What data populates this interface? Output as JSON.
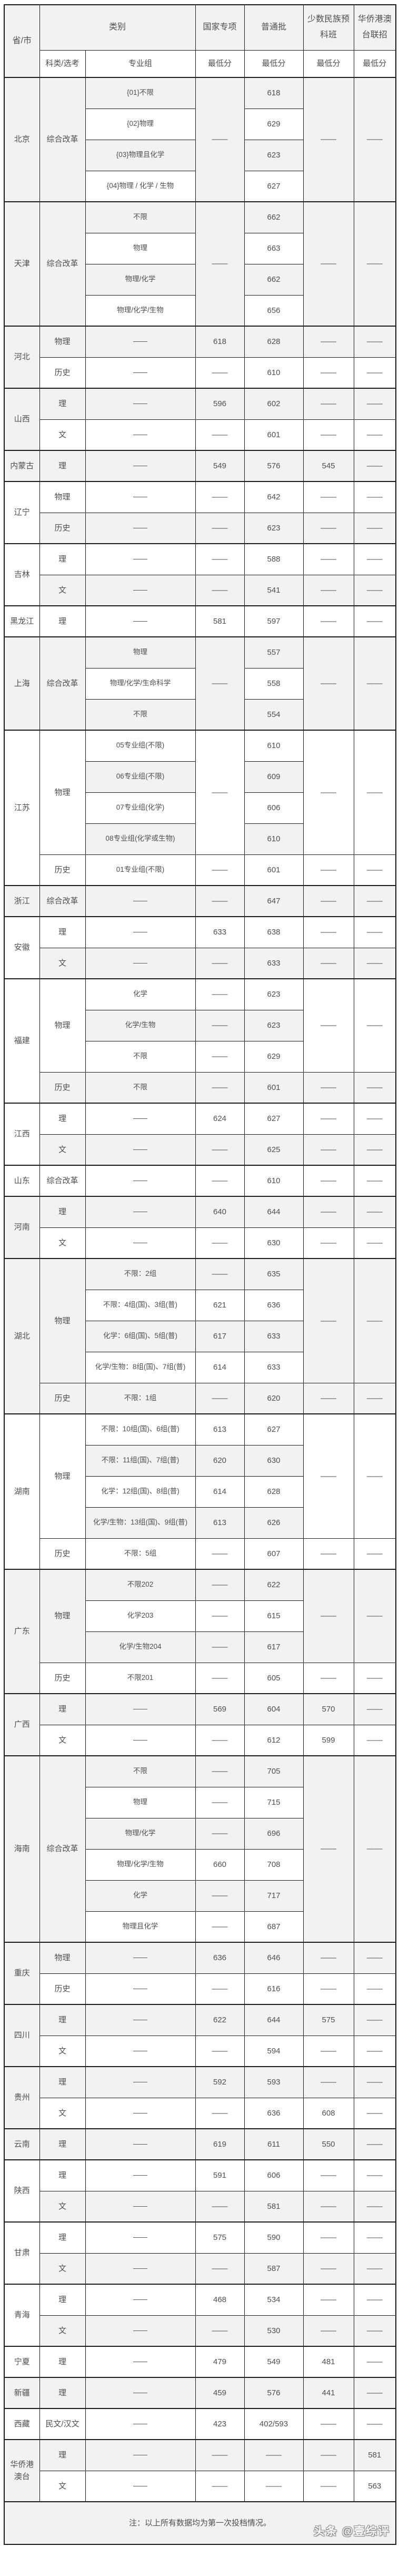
{
  "table": {
    "header": {
      "province": "省/市",
      "category": "类别",
      "subject_type": "科类/选考",
      "major_group": "专业组",
      "national": "国家专项",
      "regular": "普通批",
      "minority": "少数民族预科班",
      "overseas": "华侨港澳台联招",
      "min_score": "最低分"
    },
    "provinces": [
      {
        "name": "北京",
        "groups": [
          {
            "subject": "综合改革",
            "merge": {
              "national": "——",
              "minority": "——",
              "overseas": "——"
            },
            "rows": [
              [
                "{01}不限",
                null,
                "618",
                null,
                null
              ],
              [
                "{02}物理",
                null,
                "629",
                null,
                null
              ],
              [
                "{03}物理且化学",
                null,
                "623",
                null,
                null
              ],
              [
                "{04}物理 / 化学 / 生物",
                null,
                "627",
                null,
                null
              ]
            ]
          }
        ]
      },
      {
        "name": "天津",
        "groups": [
          {
            "subject": "综合改革",
            "merge": {
              "national": "——",
              "minority": "——",
              "overseas": "——"
            },
            "rows": [
              [
                "不限",
                null,
                "662",
                null,
                null
              ],
              [
                "物理",
                null,
                "663",
                null,
                null
              ],
              [
                "物理/化学",
                null,
                "662",
                null,
                null
              ],
              [
                "物理/化学/生物",
                null,
                "656",
                null,
                null
              ]
            ]
          }
        ]
      },
      {
        "name": "河北",
        "groups": [
          {
            "subject": "物理",
            "rows": [
              [
                "——",
                "618",
                "628",
                "——",
                "——"
              ]
            ]
          },
          {
            "subject": "历史",
            "rows": [
              [
                "——",
                "——",
                "610",
                "——",
                "——"
              ]
            ]
          }
        ]
      },
      {
        "name": "山西",
        "groups": [
          {
            "subject": "理",
            "rows": [
              [
                "——",
                "596",
                "602",
                "——",
                "——"
              ]
            ]
          },
          {
            "subject": "文",
            "rows": [
              [
                "——",
                "——",
                "601",
                "——",
                "——"
              ]
            ]
          }
        ]
      },
      {
        "name": "内蒙古",
        "groups": [
          {
            "subject": "理",
            "rows": [
              [
                "——",
                "549",
                "576",
                "545",
                "——"
              ]
            ]
          }
        ]
      },
      {
        "name": "辽宁",
        "groups": [
          {
            "subject": "物理",
            "rows": [
              [
                "——",
                "——",
                "642",
                "——",
                "——"
              ]
            ]
          },
          {
            "subject": "历史",
            "rows": [
              [
                "——",
                "——",
                "623",
                "——",
                "——"
              ]
            ]
          }
        ]
      },
      {
        "name": "吉林",
        "groups": [
          {
            "subject": "理",
            "rows": [
              [
                "——",
                "——",
                "588",
                "——",
                "——"
              ]
            ]
          },
          {
            "subject": "文",
            "rows": [
              [
                "——",
                "——",
                "541",
                "——",
                "——"
              ]
            ]
          }
        ]
      },
      {
        "name": "黑龙江",
        "groups": [
          {
            "subject": "理",
            "rows": [
              [
                "——",
                "581",
                "597",
                "——",
                "——"
              ]
            ]
          }
        ]
      },
      {
        "name": "上海",
        "groups": [
          {
            "subject": "综合改革",
            "merge": {
              "national": "——",
              "minority": "——",
              "overseas": "——"
            },
            "rows": [
              [
                "物理",
                null,
                "557",
                null,
                null
              ],
              [
                "物理/化学/生命科学",
                null,
                "558",
                null,
                null
              ],
              [
                "不限",
                null,
                "554",
                null,
                null
              ]
            ]
          }
        ]
      },
      {
        "name": "江苏",
        "groups": [
          {
            "subject": "物理",
            "merge": {
              "national": "——",
              "minority": "——",
              "overseas": "——"
            },
            "rows": [
              [
                "05专业组(不限)",
                null,
                "610",
                null,
                null
              ],
              [
                "06专业组(不限)",
                null,
                "609",
                null,
                null
              ],
              [
                "07专业组(化学)",
                null,
                "606",
                null,
                null
              ],
              [
                "08专业组(化学或生物)",
                null,
                "610",
                null,
                null
              ]
            ]
          },
          {
            "subject": "历史",
            "rows": [
              [
                "01专业组(不限)",
                "——",
                "601",
                "——",
                "——"
              ]
            ]
          }
        ]
      },
      {
        "name": "浙江",
        "groups": [
          {
            "subject": "综合改革",
            "rows": [
              [
                "——",
                "——",
                "647",
                "——",
                "——"
              ]
            ]
          }
        ]
      },
      {
        "name": "安徽",
        "groups": [
          {
            "subject": "理",
            "rows": [
              [
                "——",
                "633",
                "638",
                "——",
                "——"
              ]
            ]
          },
          {
            "subject": "文",
            "rows": [
              [
                "——",
                "——",
                "633",
                "——",
                "——"
              ]
            ]
          }
        ]
      },
      {
        "name": "福建",
        "groups": [
          {
            "subject": "物理",
            "merge": {
              "national": null,
              "minority": "——",
              "overseas": "——"
            },
            "rows": [
              [
                "化学",
                "——",
                "623",
                null,
                null
              ],
              [
                "化学/生物",
                "——",
                "623",
                null,
                null
              ],
              [
                "不限",
                "——",
                "629",
                null,
                null
              ]
            ]
          },
          {
            "subject": "历史",
            "rows": [
              [
                "不限",
                "——",
                "601",
                "——",
                "——"
              ]
            ]
          }
        ]
      },
      {
        "name": "江西",
        "groups": [
          {
            "subject": "理",
            "rows": [
              [
                "——",
                "624",
                "627",
                "——",
                "——"
              ]
            ]
          },
          {
            "subject": "文",
            "rows": [
              [
                "——",
                "——",
                "625",
                "——",
                "——"
              ]
            ]
          }
        ]
      },
      {
        "name": "山东",
        "groups": [
          {
            "subject": "综合改革",
            "rows": [
              [
                "——",
                "——",
                "610",
                "——",
                "——"
              ]
            ]
          }
        ]
      },
      {
        "name": "河南",
        "groups": [
          {
            "subject": "理",
            "rows": [
              [
                "——",
                "640",
                "644",
                "——",
                "——"
              ]
            ]
          },
          {
            "subject": "文",
            "rows": [
              [
                "——",
                "——",
                "630",
                "——",
                "——"
              ]
            ]
          }
        ]
      },
      {
        "name": "湖北",
        "groups": [
          {
            "subject": "物理",
            "merge": {
              "national": null,
              "minority": "——",
              "overseas": "——"
            },
            "rows": [
              [
                "不限：2组",
                "——",
                "635",
                null,
                null
              ],
              [
                "不限：4组(国)、3组(普)",
                "621",
                "636",
                null,
                null
              ],
              [
                "化学：6组(国)、5组(普)",
                "617",
                "633",
                null,
                null
              ],
              [
                "化学/生物：8组(国)、7组(普)",
                "614",
                "633",
                null,
                null
              ]
            ]
          },
          {
            "subject": "历史",
            "rows": [
              [
                "不限：1组",
                "——",
                "620",
                "——",
                "——"
              ]
            ]
          }
        ]
      },
      {
        "name": "湖南",
        "groups": [
          {
            "subject": "物理",
            "merge": {
              "national": null,
              "minority": "——",
              "overseas": "——"
            },
            "rows": [
              [
                "不限：10组(国)、6组(普)",
                "613",
                "627",
                null,
                null
              ],
              [
                "不限：11组(国)、7组(普)",
                "620",
                "630",
                null,
                null
              ],
              [
                "化学：12组(国)、8组(普)",
                "614",
                "628",
                null,
                null
              ],
              [
                "化学/生物：13组(国)、9组(普)",
                "613",
                "626",
                null,
                null
              ]
            ]
          },
          {
            "subject": "历史",
            "rows": [
              [
                "不限：5组",
                "——",
                "607",
                "——",
                "——"
              ]
            ]
          }
        ]
      },
      {
        "name": "广东",
        "groups": [
          {
            "subject": "物理",
            "merge": {
              "national": null,
              "minority": "——",
              "overseas": "——"
            },
            "rows": [
              [
                "不限202",
                "——",
                "622",
                null,
                null
              ],
              [
                "化学203",
                "——",
                "615",
                null,
                null
              ],
              [
                "化学/生物204",
                "——",
                "617",
                null,
                null
              ]
            ]
          },
          {
            "subject": "历史",
            "rows": [
              [
                "不限201",
                "——",
                "605",
                "——",
                "——"
              ]
            ]
          }
        ]
      },
      {
        "name": "广西",
        "groups": [
          {
            "subject": "理",
            "rows": [
              [
                "——",
                "569",
                "604",
                "570",
                "——"
              ]
            ]
          },
          {
            "subject": "文",
            "rows": [
              [
                "——",
                "——",
                "612",
                "599",
                "——"
              ]
            ]
          }
        ]
      },
      {
        "name": "海南",
        "groups": [
          {
            "subject": "综合改革",
            "merge": {
              "national": null,
              "minority": "——",
              "overseas": "——"
            },
            "rows": [
              [
                "不限",
                "——",
                "705",
                null,
                null
              ],
              [
                "物理",
                "——",
                "715",
                null,
                null
              ],
              [
                "物理/化学",
                "——",
                "696",
                null,
                null
              ],
              [
                "物理/化学/生物",
                "660",
                "708",
                null,
                null
              ],
              [
                "化学",
                "——",
                "717",
                null,
                null
              ],
              [
                "物理且化学",
                "——",
                "687",
                null,
                null
              ]
            ]
          }
        ]
      },
      {
        "name": "重庆",
        "groups": [
          {
            "subject": "物理",
            "rows": [
              [
                "——",
                "636",
                "646",
                "——",
                "——"
              ]
            ]
          },
          {
            "subject": "历史",
            "rows": [
              [
                "——",
                "——",
                "616",
                "——",
                "——"
              ]
            ]
          }
        ]
      },
      {
        "name": "四川",
        "groups": [
          {
            "subject": "理",
            "rows": [
              [
                "——",
                "622",
                "644",
                "575",
                "——"
              ]
            ]
          },
          {
            "subject": "文",
            "rows": [
              [
                "——",
                "——",
                "594",
                "——",
                "——"
              ]
            ]
          }
        ]
      },
      {
        "name": "贵州",
        "groups": [
          {
            "subject": "理",
            "rows": [
              [
                "——",
                "592",
                "593",
                "——",
                "——"
              ]
            ]
          },
          {
            "subject": "文",
            "rows": [
              [
                "——",
                "——",
                "636",
                "608",
                "——"
              ]
            ]
          }
        ]
      },
      {
        "name": "云南",
        "groups": [
          {
            "subject": "理",
            "rows": [
              [
                "——",
                "619",
                "611",
                "550",
                "——"
              ]
            ]
          }
        ]
      },
      {
        "name": "陕西",
        "groups": [
          {
            "subject": "理",
            "rows": [
              [
                "——",
                "591",
                "606",
                "——",
                "——"
              ]
            ]
          },
          {
            "subject": "文",
            "rows": [
              [
                "——",
                "——",
                "581",
                "——",
                "——"
              ]
            ]
          }
        ]
      },
      {
        "name": "甘肃",
        "groups": [
          {
            "subject": "理",
            "rows": [
              [
                "——",
                "575",
                "590",
                "——",
                "——"
              ]
            ]
          },
          {
            "subject": "文",
            "rows": [
              [
                "——",
                "——",
                "587",
                "——",
                "——"
              ]
            ]
          }
        ]
      },
      {
        "name": "青海",
        "groups": [
          {
            "subject": "理",
            "rows": [
              [
                "——",
                "468",
                "534",
                "——",
                "——"
              ]
            ]
          },
          {
            "subject": "文",
            "rows": [
              [
                "——",
                "——",
                "530",
                "——",
                "——"
              ]
            ]
          }
        ]
      },
      {
        "name": "宁夏",
        "groups": [
          {
            "subject": "理",
            "rows": [
              [
                "——",
                "479",
                "549",
                "481",
                "——"
              ]
            ]
          }
        ]
      },
      {
        "name": "新疆",
        "groups": [
          {
            "subject": "理",
            "rows": [
              [
                "——",
                "459",
                "576",
                "441",
                "——"
              ]
            ]
          }
        ]
      },
      {
        "name": "西藏",
        "groups": [
          {
            "subject": "民文/汉文",
            "rows": [
              [
                "——",
                "423",
                "402/593",
                "——",
                "——"
              ]
            ]
          }
        ]
      },
      {
        "name": "华侨港澳台",
        "groups": [
          {
            "subject": "理",
            "rows": [
              [
                "——",
                "——",
                "——",
                "——",
                "581"
              ]
            ]
          },
          {
            "subject": "文",
            "rows": [
              [
                "——",
                "——",
                "——",
                "——",
                "563"
              ]
            ]
          }
        ]
      }
    ],
    "footer_note": "注：以上所有数据均为第一次投档情况。"
  },
  "watermark": "头条 @壹综评",
  "style": {
    "stripe_gray": "#f2f2f2",
    "stripe_white": "#ffffff",
    "border_color": "#1b1b1b",
    "text_color": "#4f4f4f"
  }
}
